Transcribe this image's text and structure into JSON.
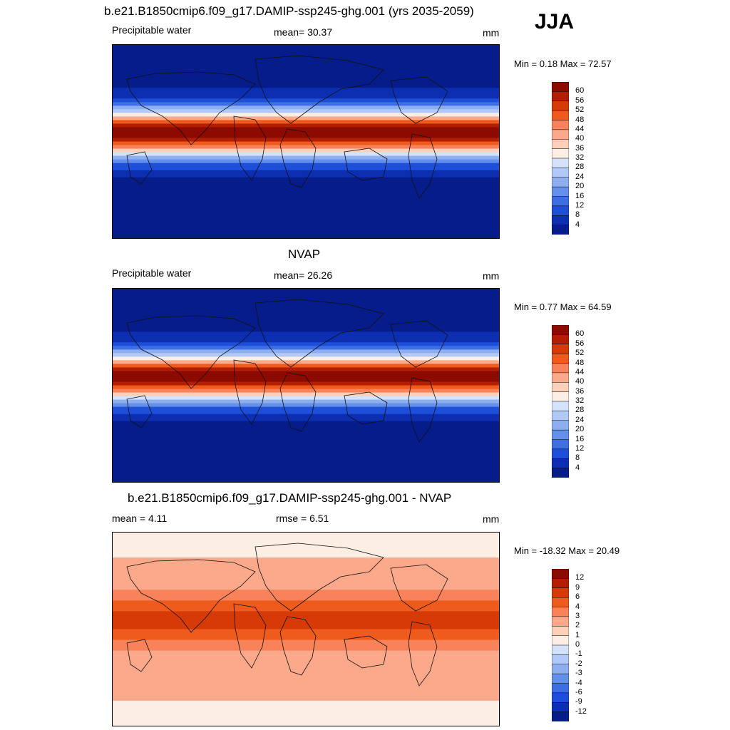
{
  "season": "JJA",
  "chart_data": [
    {
      "type": "heatmap",
      "title": "b.e21.B1850cmip6.f09_g17.DAMIP-ssp245-ghg.001 (yrs 2035-2059)",
      "left_label": "Precipitable water",
      "center_label": "mean=  30.37",
      "units": "mm",
      "minmax": "Min =   0.18 Max =  72.57",
      "colorbar": {
        "levels": [
          "60",
          "56",
          "52",
          "48",
          "44",
          "40",
          "36",
          "32",
          "28",
          "24",
          "20",
          "16",
          "12",
          "8",
          "4"
        ],
        "colors": [
          "#8c0a00",
          "#b31e00",
          "#d63a06",
          "#ef5a1d",
          "#f8825a",
          "#fba98a",
          "#fdd0ba",
          "#fdeee4",
          "#d4e3fb",
          "#b0c9f6",
          "#8daff0",
          "#6390ea",
          "#3d6fe3",
          "#1e4fd8",
          "#0c2fb2",
          "#061c8a"
        ]
      },
      "fields": {
        "eq_value": 62,
        "pole_value": 4
      }
    },
    {
      "type": "heatmap",
      "title": "NVAP",
      "left_label": "Precipitable water",
      "center_label": "mean=  26.26",
      "units": "mm",
      "minmax": "Min =   0.77 Max =  64.59",
      "colorbar": {
        "levels": [
          "60",
          "56",
          "52",
          "48",
          "44",
          "40",
          "36",
          "32",
          "28",
          "24",
          "20",
          "16",
          "12",
          "8",
          "4"
        ],
        "colors": [
          "#8c0a00",
          "#b31e00",
          "#d63a06",
          "#ef5a1d",
          "#f8825a",
          "#fba98a",
          "#fdd0ba",
          "#fdeee4",
          "#d4e3fb",
          "#b0c9f6",
          "#8daff0",
          "#6390ea",
          "#3d6fe3",
          "#1e4fd8",
          "#0c2fb2",
          "#061c8a"
        ]
      },
      "fields": {
        "eq_value": 52,
        "pole_value": 3
      }
    },
    {
      "type": "heatmap",
      "title": "b.e21.B1850cmip6.f09_g17.DAMIP-ssp245-ghg.001 - NVAP",
      "left_label": "mean =   4.11",
      "center_label": "rmse =    6.51",
      "units": "mm",
      "minmax": "Min = -18.32 Max =  20.49",
      "colorbar": {
        "levels": [
          "12",
          "9",
          "6",
          "4",
          "3",
          "2",
          "1",
          "0",
          "-1",
          "-2",
          "-3",
          "-4",
          "-6",
          "-9",
          "-12"
        ],
        "colors": [
          "#8c0a00",
          "#b31e00",
          "#d63a06",
          "#ef5a1d",
          "#f8825a",
          "#fba98a",
          "#fdd0ba",
          "#fdeee4",
          "#d4e3fb",
          "#b0c9f6",
          "#8daff0",
          "#6390ea",
          "#3d6fe3",
          "#1e4fd8",
          "#0c2fb2",
          "#061c8a"
        ]
      },
      "fields": {
        "eq_value": 9,
        "pole_value": 1
      }
    }
  ]
}
